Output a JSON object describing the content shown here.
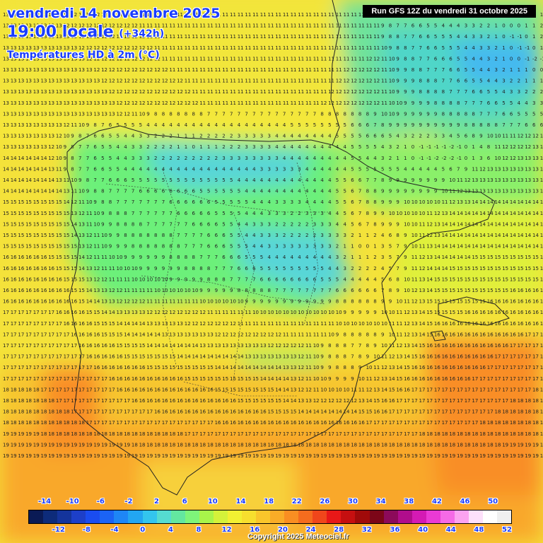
{
  "header": {
    "date": "vendredi 14 novembre 2025",
    "time": "19:00 locale",
    "lead": "(+342h)",
    "variable": "Températures HD à 2m (°C)"
  },
  "run_label": "Run GFS 12Z du vendredi 31 octobre 2025",
  "copyright": "Copyright 2025 Meteociel.fr",
  "legend": {
    "ticks_top": [
      "-14",
      "-10",
      "-6",
      "-2",
      "2",
      "6",
      "10",
      "14",
      "18",
      "22",
      "26",
      "30",
      "34",
      "38",
      "42",
      "46",
      "50"
    ],
    "ticks_bottom": [
      "-12",
      "-8",
      "-4",
      "0",
      "4",
      "8",
      "12",
      "16",
      "20",
      "24",
      "28",
      "32",
      "36",
      "40",
      "44",
      "48",
      "52"
    ],
    "colors": [
      "#0a1a55",
      "#0d2b7a",
      "#14349c",
      "#1d3fc9",
      "#1a4cf0",
      "#1b63f5",
      "#1e86f6",
      "#22a6f2",
      "#33c5ee",
      "#55dcd0",
      "#63e7a0",
      "#7ef57a",
      "#a8f54a",
      "#d4f23a",
      "#f2f032",
      "#f7df2e",
      "#f9c62b",
      "#f9ac27",
      "#f98e22",
      "#f56c1e",
      "#f0461b",
      "#e81818",
      "#c60f10",
      "#a00a0a",
      "#7c0618",
      "#8c0a5a",
      "#b00d8c",
      "#d41ab4",
      "#ea3ad4",
      "#f56ae6",
      "#fba3f0",
      "#fde0fb",
      "#ffffff",
      "#f0f0f0"
    ]
  },
  "grid": {
    "rows": [
      "13 13 13 13 13 13 13 12 12 12 12 12 12 12 12 12 12 12 11 11 11 11 11 11 11 11 11 11 11 11 11 11 11 11 11 11 11 11 11 11 11 11 11 11 11 11 11 11 11 11 10 9 8 7 6 5 5 4 3 3 4 3 3 3 2 2 1 1 1 1 0 1",
      "13 13 13 13 13 13 13 13 12 12 12 12 12 12 12 12 12 12 11 11 11 11 11 11 11 11 11 11 11 11 11 11 11 11 11 11 11 11 11 11 11 11 11 11 11 11 11 11 11 11 9 8 7 7 6 6 5 5 4 4 4 3 3 2 2 1 0 0 0 1 1 2",
      "13 13 13 13 13 13 13 13 13 12 12 12 12 12 12 12 12 12 12 11 11 11 11 11 11 11 11 11 11 11 11 11 11 11 11 11 11 11 11 11 11 11 11 11 11 11 11 11 11 11 9 8 8 7 7 6 6 5 5 5 4 4 3 3 2 1 0 -1 -1 0 1 2",
      "13 13 13 13 13 13 13 13 13 13 12 12 12 12 12 12 12 12 12 12 11 11 11 11 11 11 11 11 11 11 11 11 11 11 11 11 11 11 11 11 11 11 11 11 11 11 11 11 11 11 10 9 8 8 7 7 6 6 5 5 5 4 4 3 3 2 1 0 -1 -1 0 1",
      "13 13 13 13 13 13 13 13 13 13 13 12 12 12 12 12 12 12 12 12 12 11 11 11 11 11 11 11 11 11 11 11 11 11 11 11 11 11 11 11 11 11 11 11 11 11 11 11 12 12 11 10 9 8 8 7 7 6 6 6 5 5 4 4 3 2 1 0 0 -1 -2 -1",
      "13 13 13 13 13 13 13 13 13 13 13 13 12 12 12 12 12 12 12 12 12 12 11 11 11 11 11 11 11 11 11 11 11 11 11 11 11 11 11 11 11 11 11 11 11 12 12 12 12 12 11 10 9 9 8 8 7 7 7 6 6 5 5 4 4 3 2 1 1 1 0 0",
      "13 13 13 13 13 13 13 13 13 13 13 13 13 12 12 12 12 12 12 12 12 12 12 12 11 11 11 11 11 11 11 11 11 11 11 11 11 11 11 11 11 11 11 11 12 12 12 12 12 12 11 10 9 9 9 8 8 8 7 7 6 6 5 5 4 4 3 2 2 1 1 1",
      "13 13 13 13 13 13 13 13 13 13 13 13 13 13 12 12 12 12 12 12 12 12 12 12 12 11 11 11 11 11 11 11 11 11 11 11 11 11 11 11 11 11 11 12 12 12 12 12 12 12 11 10 9 9 9 8 8 8 8 7 7 7 6 6 5 5 4 3 3 2 2 2",
      "13 13 13 13 13 13 13 13 13 13 13 13 13 13 13 12 12 12 12 12 12 12 12 12 12 12 11 11 11 11 11 11 11 11 11 11 11 11 11 11 11 11 12 12 12 12 12 12 12 12 11 10 10 9 9 9 9 8 8 8 8 7 7 7 6 6 5 5 4 4 3 3",
      "13 13 13 13 13 13 13 13 13 13 13 13 13 13 13 12 12 11 10 9 8 8 8 8 8 8 8 7 7 7 7 7 7 7 7 7 7 7 7 7 7 7 8 8 8 8 8 8 8 9 10 10 9 9 9 9 9 9 8 8 8 8 8 7 7 7 6 6 5 5 5 5",
      "13 13 13 13 13 13 13 13 12 11 10 9 8 7 6 5 5 5 5 4 4 4 4 4 4 4 4 4 4 4 4 4 4 4 4 4 4 4 5 5 5 5 5 5 5 5 6 6 6 7 8 9 9 9 9 9 9 9 9 9 9 8 8 8 8 8 7 7 7 6 6 6",
      "13 13 13 13 13 13 13 12 10 9 8 7 6 6 5 5 4 4 3 3 2 2 2 1 1 1 2 2 2 2 2 3 3 3 3 3 4 4 4 4 4 4 4 4 5 5 5 5 6 6 6 5 4 3 2 2 2 3 3 4 5 6 8 9 10 10 11 11 12 12 12 12",
      "13 13 13 13 13 13 12 10 9 8 7 7 6 5 5 4 4 3 3 2 2 2 2 1 1 0 1 1 1 2 2 2 3 3 3 3 4 4 4 4 4 4 4 4 4 4 5 5 5 5 4 3 2 1 0 -1 -1 -1 -1 -2 -1 0 1 4 8 11 12 12 12 12 13 13",
      "14 14 14 14 14 14 12 10 9 8 7 7 6 5 5 4 4 3 3 3 2 2 2 2 2 2 2 2 2 3 3 3 3 3 3 3 3 4 4 4 4 4 4 4 4 4 5 5 4 4 3 2 1 1 0 -1 -1 -2 -2 -2 -1 0 1 3 6 10 12 12 13 13 13 13",
      "14 14 14 14 14 14 13 11 9 8 7 7 6 6 5 5 4 4 4 4 4 4 4 4 4 4 4 4 4 4 4 4 4 4 3 3 3 3 3 3 4 4 4 4 4 4 5 5 5 5 5 5 5 4 4 4 4 4 5 6 7 9 11 12 13 13 13 13 13 13 13 13",
      "14 14 14 14 14 14 14 13 11 10 9 8 7 7 6 6 6 5 5 5 5 5 5 5 5 5 5 5 5 5 5 4 4 4 4 4 4 4 4 4 4 4 4 4 5 5 6 6 7 7 8 9 9 9 9 9 9 9 9 10 11 12 13 13 13 13 13 13 13 13 13 13",
      "14 14 14 14 14 14 14 14 13 11 10 9 8 8 7 7 7 7 6 6 6 6 6 6 6 6 5 5 5 5 5 5 4 4 4 4 4 4 4 4 4 4 4 4 5 5 6 7 8 8 9 9 9 9 9 9 9 9 10 11 12 13 13 13 13 13 13 13 13 13 13 13",
      "15 15 15 15 15 15 15 15 14 12 11 10 9 8 8 7 7 7 7 7 7 7 6 6 6 6 6 6 5 5 5 5 5 4 4 4 3 3 3 3 4 4 4 4 5 5 6 7 8 8 9 9 9 10 10 10 10 10 11 12 13 13 14 14 14 14 14 14 14 14 14 14",
      "15 15 15 15 15 15 15 15 15 13 12 11 10 9 8 8 8 7 7 7 7 7 7 6 6 6 6 6 5 5 5 5 4 4 4 3 3 3 2 2 3 3 3 4 4 5 6 7 8 9 9 10 10 10 10 10 11 12 13 14 14 14 14 14 14 14 14 14 14 14 14 14",
      "15 15 15 15 15 15 15 15 15 14 13 11 10 9 9 8 8 8 8 7 7 7 7 7 7 6 6 6 6 5 5 4 4 3 3 3 2 2 2 2 2 3 3 3 4 4 5 6 7 8 9 9 9 10 10 11 12 13 14 14 14 14 14 14 14 14 14 14 14 14 14 14",
      "15 15 15 15 15 15 15 15 15 14 13 12 11 10 9 9 8 8 8 8 8 8 8 7 7 7 7 6 6 6 5 5 4 4 3 3 3 2 2 2 2 2 3 3 3 3 2 1 1 2 4 6 8 9 10 11 12 13 14 14 14 14 14 14 14 14 14 14 14 14 14 14",
      "15 15 15 15 15 15 15 15 15 15 13 12 11 10 9 9 9 8 8 8 8 8 8 8 7 7 7 6 6 6 5 5 5 4 4 3 3 3 3 3 3 3 3 3 2 1 1 0 0 1 3 5 7 9 10 11 13 14 14 14 14 14 14 14 14 14 14 14 14 14 14 14",
      "16 16 16 16 16 16 15 15 15 15 14 12 11 11 10 10 9 9 9 9 9 9 8 8 8 8 7 7 7 6 6 6 5 5 5 4 4 4 4 4 4 4 4 4 3 2 1 1 1 2 3 5 7 9 11 12 13 14 14 14 14 14 15 15 15 15 15 15 15 15 15 15",
      "16 16 16 16 16 16 16 15 15 15 14 13 12 11 11 10 10 10 9 9 9 9 9 9 8 8 8 8 7 7 7 6 6 6 5 5 5 5 5 5 5 5 5 4 4 3 2 2 2 2 4 5 7 9 11 12 14 14 14 15 15 15 15 15 15 15 15 15 15 15 15 15",
      "16 16 16 16 16 16 16 16 15 15 15 13 12 12 11 11 11 10 10 10 10 10 9 9 9 9 9 8 8 8 7 7 7 7 6 6 6 6 6 6 6 6 5 5 5 4 4 4 4 4 5 6 8 10 11 13 14 15 15 15 15 15 15 15 15 15 15 15 15 15 15 15",
      "16 16 16 16 16 16 16 16 16 15 15 14 13 13 12 12 11 11 11 11 10 10 10 10 10 10 9 9 9 9 9 8 8 8 8 8 7 7 7 7 7 7 7 7 6 6 6 6 6 6 7 8 9 10 12 13 14 15 15 15 15 15 15 15 15 15 15 16 16 16 16 16",
      "16 16 16 16 16 16 16 16 16 16 15 14 14 13 13 12 12 12 12 11 11 11 11 11 11 11 10 10 10 10 10 10 9 9 9 9 9 9 9 9 9 9 9 9 8 8 8 8 8 8 9 9 10 11 12 13 15 15 15 15 15 15 15 15 16 16 16 16 16 16 16 16",
      "17 17 17 17 17 17 17 16 16 16 16 15 15 14 14 13 13 13 13 12 12 12 12 12 12 12 12 11 11 11 11 11 11 10 10 10 10 10 10 10 10 10 10 10 10 9 9 9 9 9 10 10 11 12 13 14 15 15 15 15 15 16 16 16 16 16 16 16 16 16 16 16",
      "17 17 17 17 17 17 17 17 16 16 16 16 15 15 15 14 14 14 14 13 13 13 13 13 12 12 12 12 12 12 12 11 11 11 11 11 11 11 11 11 11 11 11 11 10 10 10 10 10 10 10 11 11 12 13 14 15 16 16 16 16 16 16 16 16 16 16 16 16 16 16 16",
      "17 17 17 17 17 17 17 17 17 16 16 16 16 15 15 15 14 14 14 14 14 13 13 13 13 13 13 13 12 12 12 12 12 12 12 12 12 11 11 11 11 11 11 10 9 8 8 8 8 8 9 10 11 12 13 14 15 16 16 16 16 16 16 16 16 16 16 16 16 17 17 17",
      "17 17 17 17 17 17 17 17 17 17 16 16 16 16 16 15 15 15 15 14 14 14 14 14 14 14 13 13 13 13 13 13 13 13 13 12 12 12 12 12 11 10 9 8 8 8 7 7 8 9 10 11 12 13 14 15 16 16 16 16 16 16 16 16 16 16 16 17 17 17 17 17",
      "17 17 17 17 17 17 17 17 17 17 17 16 16 16 16 16 15 15 15 15 15 15 15 14 14 14 14 14 14 14 14 14 13 13 13 13 13 13 13 12 11 10 9 8 8 8 7 8 9 10 11 12 13 14 15 16 16 16 16 16 16 16 16 16 16 17 17 17 17 17 17 17",
      "17 17 17 17 17 17 17 17 17 17 17 17 16 16 16 16 16 16 16 15 15 15 15 15 15 15 15 15 14 14 14 14 14 14 14 14 14 13 13 12 11 10 9 9 8 8 8 9 10 11 12 13 14 15 16 16 16 16 16 16 16 16 16 16 17 17 17 17 17 17 17 17",
      "17 17 17 17 17 17 17 17 17 17 17 17 17 17 16 16 16 16 16 16 16 16 16 16 15 15 15 15 15 15 15 15 15 15 14 14 14 14 13 12 11 10 10 9 9 9 9 10 11 12 13 14 15 16 16 16 16 16 16 16 16 16 17 17 17 17 17 17 17 17 17 17",
      "18 18 18 18 18 17 17 17 17 17 17 17 17 17 17 16 16 16 16 16 16 16 16 16 16 16 16 16 15 15 15 15 15 15 15 15 14 14 13 12 12 11 10 10 10 10 11 11 12 13 14 15 16 16 17 17 17 17 17 17 17 17 17 17 17 17 17 17 17 17 18 18",
      "18 18 18 18 18 18 18 17 17 17 17 17 17 17 17 17 17 16 16 16 16 16 16 16 16 16 16 16 16 16 16 15 15 15 15 15 15 14 14 13 13 12 12 12 12 12 12 13 14 15 16 16 17 17 17 17 17 17 17 17 17 17 17 17 17 17 17 18 18 18 18 18",
      "18 18 18 18 18 18 18 18 18 17 17 17 17 17 17 17 17 17 17 17 16 16 16 16 16 16 16 16 16 16 16 16 16 16 16 15 15 15 15 14 14 14 14 14 14 14 14 15 15 16 16 17 17 17 17 17 17 17 17 17 17 17 17 17 17 18 18 18 18 18 18 18",
      "18 18 18 18 18 18 18 18 18 18 18 17 17 17 17 17 17 17 17 17 17 17 17 17 17 17 17 17 16 16 16 16 16 16 16 16 16 16 16 16 16 16 16 16 16 16 16 16 17 17 17 17 17 17 17 17 17 17 17 17 17 17 17 18 18 18 18 18 18 18 18 18",
      "19 19 19 19 19 18 18 18 18 18 18 18 18 18 18 18 18 18 18 18 18 18 18 18 17 17 17 17 17 17 17 17 17 17 17 17 17 17 17 17 17 17 17 17 17 17 17 17 17 17 17 17 17 17 17 18 18 18 18 18 18 18 18 18 18 18 18 18 18 18 18 19",
      "19 19 19 19 19 19 19 19 19 19 19 19 19 19 19 19 19 18 18 18 18 18 18 18 18 18 18 18 18 18 18 18 18 18 18 18 18 18 18 18 18 18 18 18 18 18 18 18 18 18 18 18 18 18 18 18 18 18 18 18 18 18 18 18 18 18 19 19 19 19 19 19",
      "19 19 19 19 19 19 19 19 19 19 19 19 19 19 19 19 19 19 19 19 19 19 19 19 19 19 19 19 19 19 19 19 19 19 19 19 19 19 19 19 19 19 19 19 19 19 19 19 19 19 19 19 19 19 19 19 19 19 19 19 19 19 19 19 19 19 19 19 19 19 19 19"
    ]
  }
}
